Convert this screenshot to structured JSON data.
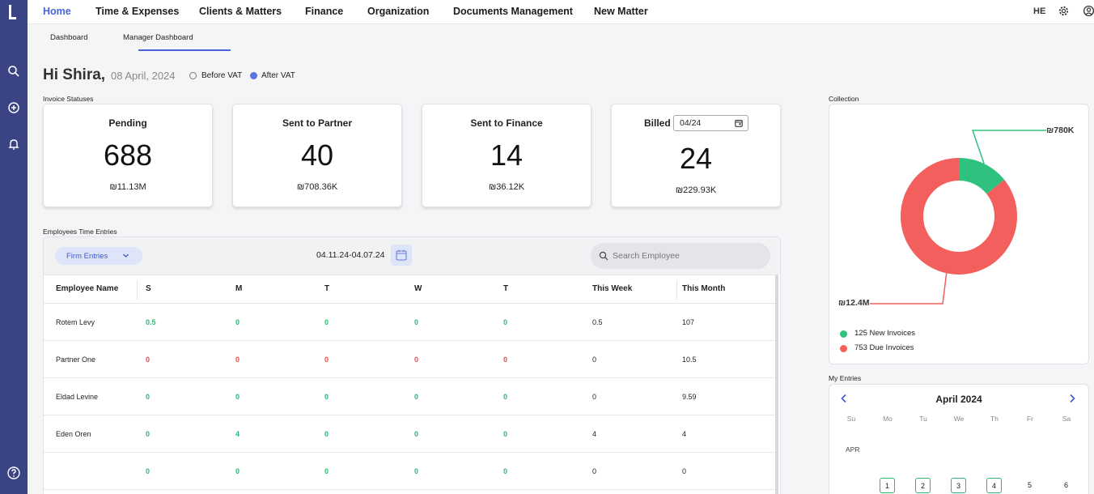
{
  "nav": {
    "items": [
      "Home",
      "Time & Expenses",
      "Clients & Matters",
      "Finance",
      "Organization",
      "Documents Management",
      "New Matter"
    ],
    "lang": "HE"
  },
  "subtabs": [
    "Dashboard",
    "Manager Dashboard"
  ],
  "greeting": {
    "hello": "Hi Shira,",
    "date": "08 April, 2024",
    "vat_options": [
      "Before VAT",
      "After VAT"
    ],
    "vat_selected": "After VAT"
  },
  "invoice_statuses": {
    "label": "Invoice Statuses",
    "cards": [
      {
        "title": "Pending",
        "count": "688",
        "amount": "₪11.13M"
      },
      {
        "title": "Sent to Partner",
        "count": "40",
        "amount": "₪708.36K"
      },
      {
        "title": "Sent to Finance",
        "count": "14",
        "amount": "₪36.12K"
      },
      {
        "title": "Billed",
        "count": "24",
        "amount": "₪229.93K",
        "month_value": "04/24"
      }
    ]
  },
  "time_entries": {
    "label": "Employees Time Entries",
    "filter": "Firm Entries",
    "range": "04.11.24-04.07.24",
    "search_placeholder": "Search Employee",
    "columns": [
      "Employee Name",
      "S",
      "M",
      "T",
      "W",
      "T",
      "This Week",
      "This Month"
    ],
    "rows": [
      {
        "name": "Rotem Levy",
        "days": [
          "0.5",
          "0",
          "0",
          "0",
          "0"
        ],
        "week": "0.5",
        "month": "107",
        "tone": [
          "g",
          "g",
          "g",
          "g",
          "g"
        ]
      },
      {
        "name": "Partner One",
        "days": [
          "0",
          "0",
          "0",
          "0",
          "0"
        ],
        "week": "0",
        "month": "10.5",
        "tone": [
          "r",
          "r",
          "r",
          "r",
          "r"
        ]
      },
      {
        "name": "Eldad Levine",
        "days": [
          "0",
          "0",
          "0",
          "0",
          "0"
        ],
        "week": "0",
        "month": "9.59",
        "tone": [
          "g",
          "g",
          "g",
          "g",
          "g"
        ]
      },
      {
        "name": "Eden Oren",
        "days": [
          "0",
          "4",
          "0",
          "0",
          "0"
        ],
        "week": "4",
        "month": "4",
        "tone": [
          "g",
          "g",
          "g",
          "g",
          "g"
        ]
      },
      {
        "name": "",
        "days": [
          "0",
          "0",
          "0",
          "0",
          "0"
        ],
        "week": "0",
        "month": "0",
        "tone": [
          "g",
          "g",
          "g",
          "g",
          "g"
        ]
      }
    ]
  },
  "collection": {
    "label": "Collection",
    "new_amount": "₪780K",
    "due_amount": "₪12.4M",
    "legend": [
      "125 New Invoices",
      "753 Due Invoices"
    ],
    "colors": {
      "new": "#2ec27e",
      "due": "#f25f5c"
    },
    "new_count": 125,
    "due_count": 753
  },
  "my_entries": {
    "label": "My Entries",
    "month": "April 2024",
    "weekdays": [
      "Su",
      "Mo",
      "Tu",
      "We",
      "Th",
      "Fr",
      "Sa"
    ],
    "row_label": "APR",
    "days": [
      "1",
      "2",
      "3",
      "4",
      "5",
      "6"
    ]
  }
}
